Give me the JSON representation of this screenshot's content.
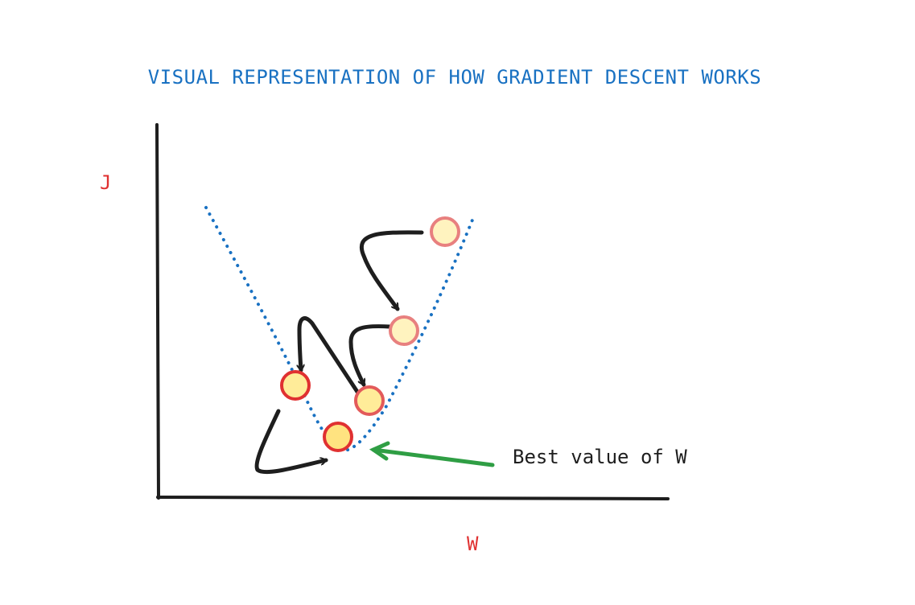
{
  "title": "VISUAL REPRESENTATION OF HOW GRADIENT DESCENT WORKS",
  "y_axis_label": "J",
  "x_axis_label": "W",
  "annotation": "Best value of W",
  "colors": {
    "title": "#1971c2",
    "axis_labels": "#e03131",
    "curve": "#1971c2",
    "point_fill": "#ffec99",
    "point_stroke": "#e03131",
    "step_arrows": "#1e1e1e",
    "annotation_arrow": "#2f9e44"
  },
  "points_count_steps": 5
}
